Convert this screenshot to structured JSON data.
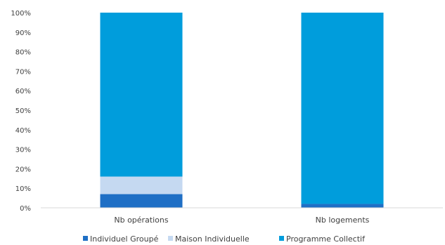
{
  "chart_data": {
    "type": "bar",
    "stacked": "percent",
    "categories": [
      "Nb opérations",
      "Nb logements"
    ],
    "series": [
      {
        "name": "Individuel Groupé",
        "values": [
          7,
          2
        ],
        "color": "#1f6fc5"
      },
      {
        "name": "Maison Individuelle",
        "values": [
          9,
          0
        ],
        "color": "#c5d9f1"
      },
      {
        "name": "Programme Collectif",
        "values": [
          84,
          98
        ],
        "color": "#009ddc"
      }
    ],
    "ylim": [
      0,
      100
    ],
    "yticks": [
      "0%",
      "10%",
      "20%",
      "30%",
      "40%",
      "50%",
      "60%",
      "70%",
      "80%",
      "90%",
      "100%"
    ],
    "legend_position": "bottom",
    "grid": false
  }
}
